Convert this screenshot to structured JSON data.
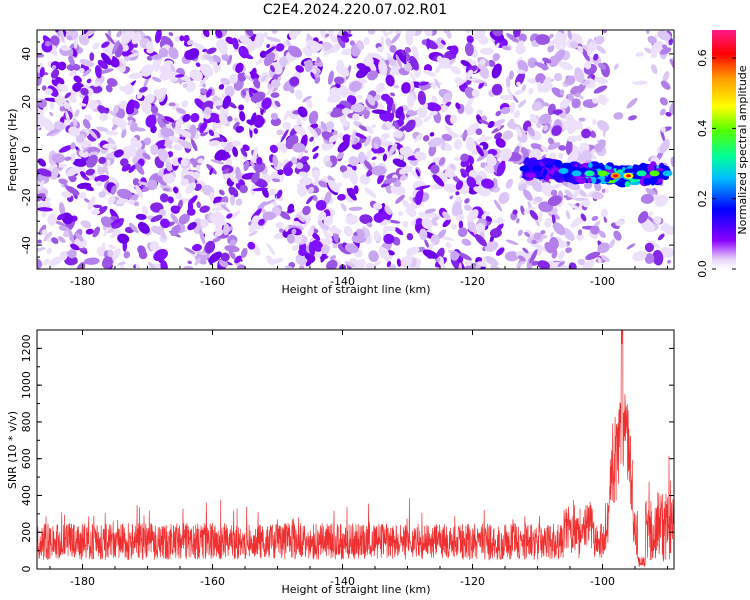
{
  "title": "C2E4.2024.220.07.02.R01",
  "chart_data": [
    {
      "type": "heatmap",
      "name": "spectrogram",
      "xlabel": "Height of straight line (km)",
      "ylabel": "Frequency (Hz)",
      "xlim": [
        -187,
        -89
      ],
      "ylim": [
        -50,
        50
      ],
      "xticks": [
        -180,
        -160,
        -140,
        -120,
        -100
      ],
      "yticks": [
        -40,
        -20,
        0,
        20,
        40
      ],
      "signal_track": {
        "x_start": -112,
        "x_end": -90,
        "frequency_hz": -10,
        "description_values": [
          {
            "x": -112,
            "y": -8,
            "amp": 0.2
          },
          {
            "x": -110,
            "y": -8,
            "amp": 0.25
          },
          {
            "x": -106,
            "y": -9,
            "amp": 0.3
          },
          {
            "x": -104,
            "y": -10,
            "amp": 0.35
          },
          {
            "x": -102,
            "y": -10,
            "amp": 0.4
          },
          {
            "x": -100,
            "y": -10,
            "amp": 0.45
          },
          {
            "x": -98,
            "y": -11,
            "amp": 0.65
          },
          {
            "x": -96,
            "y": -11,
            "amp": 0.55
          },
          {
            "x": -94,
            "y": -10,
            "amp": 0.4
          },
          {
            "x": -92,
            "y": -10,
            "amp": 0.45
          },
          {
            "x": -90,
            "y": -10,
            "amp": 0.35
          }
        ]
      },
      "colorbar": {
        "label": "Normalized spectral amplitude",
        "range": [
          0.0,
          0.68
        ],
        "ticks": [
          0.0,
          0.2,
          0.4,
          0.6
        ],
        "tick_labels": [
          "0.0",
          "0.2",
          "0.4",
          "0.6"
        ],
        "colors": [
          "#ffffff",
          "#d9b8f0",
          "#8b00ff",
          "#0000ff",
          "#00bfff",
          "#00ff99",
          "#55ff00",
          "#ffff00",
          "#ff9900",
          "#ff0000",
          "#ff1a8c"
        ]
      },
      "grid": false
    },
    {
      "type": "line",
      "name": "snr",
      "xlabel": "Height of straight line (km)",
      "ylabel": "SNR (10 * v/v)",
      "xlim": [
        -187,
        -89
      ],
      "ylim": [
        0,
        1300
      ],
      "xticks": [
        -180,
        -160,
        -140,
        -120,
        -100
      ],
      "yticks": [
        0,
        200,
        400,
        600,
        800,
        1000,
        1200
      ],
      "color": "#f03030",
      "series_profile": {
        "baseline_range": [
          50,
          250
        ],
        "typical_max": 400,
        "peak": {
          "x": -97,
          "y": 1300
        },
        "secondary_peaks": [
          {
            "x": -98.5,
            "y": 820
          },
          {
            "x": -96,
            "y": 760
          },
          {
            "x": -95,
            "y": 640
          },
          {
            "x": -104,
            "y": 420
          },
          {
            "x": -91,
            "y": 590
          }
        ],
        "dip": {
          "x": -94,
          "y": 20
        }
      },
      "grid": false
    }
  ]
}
